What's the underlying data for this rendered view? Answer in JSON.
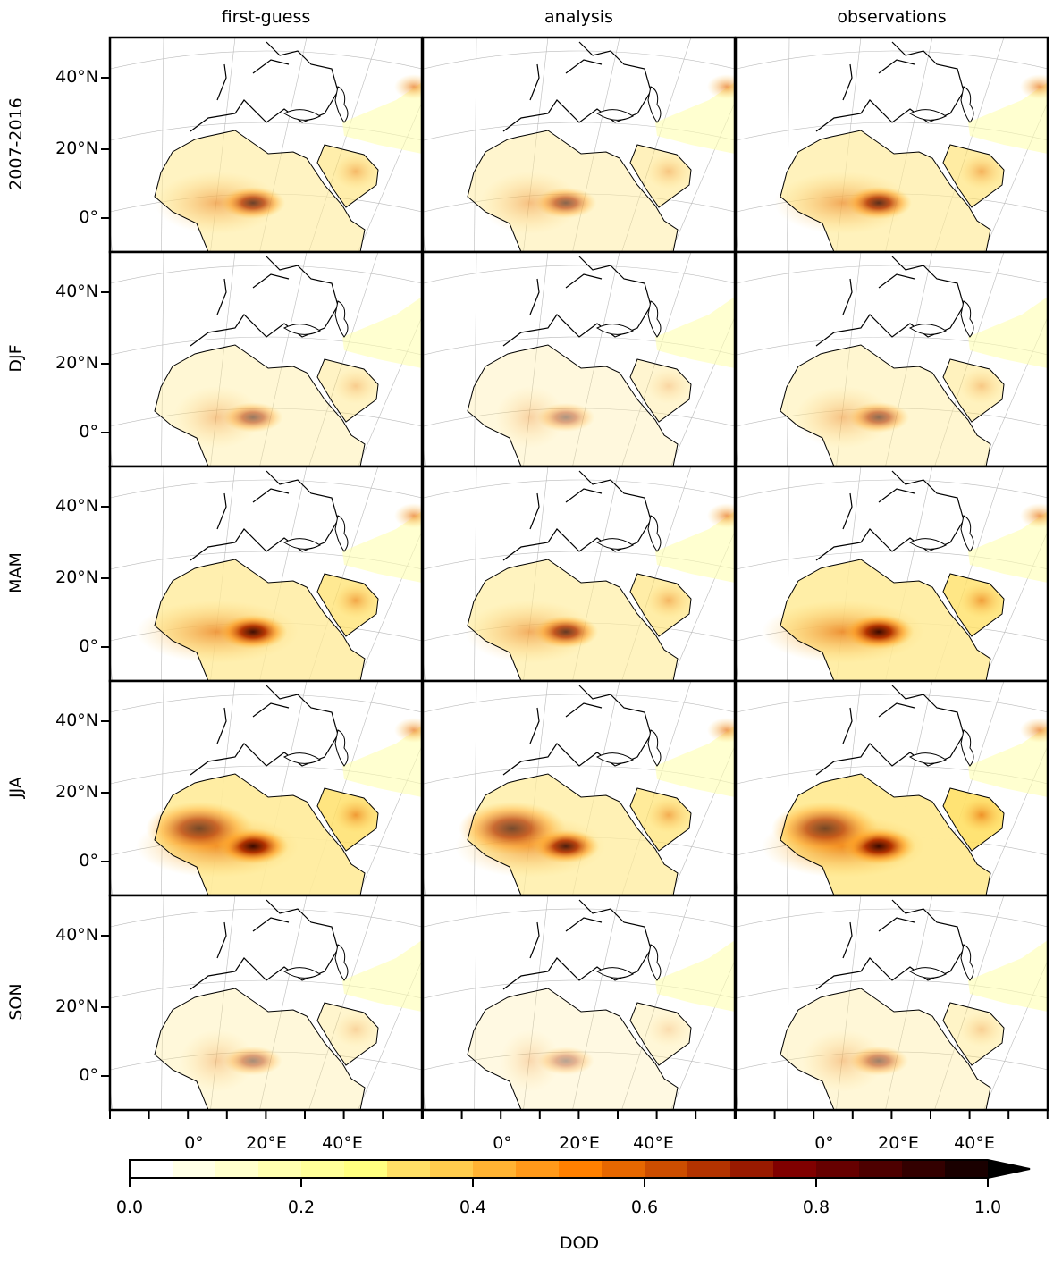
{
  "columns": [
    "first-guess",
    "analysis",
    "observations"
  ],
  "rows": [
    "2007-2016",
    "DJF",
    "MAM",
    "JJA",
    "SON"
  ],
  "y_ticks": [
    "40°N",
    "20°N",
    "0°"
  ],
  "x_ticks": [
    "0°",
    "20°E",
    "40°E"
  ],
  "colorbar": {
    "label": "DOD",
    "ticks": [
      "0.0",
      "0.2",
      "0.4",
      "0.6",
      "0.8",
      "1.0"
    ],
    "range": [
      0.0,
      1.0
    ],
    "extend": "max",
    "colors": [
      "#ffffff",
      "#ffffe6",
      "#ffffcc",
      "#ffffb0",
      "#ffff99",
      "#ffff80",
      "#ffe066",
      "#ffcc4d",
      "#ffb333",
      "#ff991a",
      "#ff8000",
      "#e66700",
      "#cc4d00",
      "#b33300",
      "#991a00",
      "#800000",
      "#660000",
      "#4d0000",
      "#330000",
      "#1a0000",
      "#000000"
    ]
  }
}
